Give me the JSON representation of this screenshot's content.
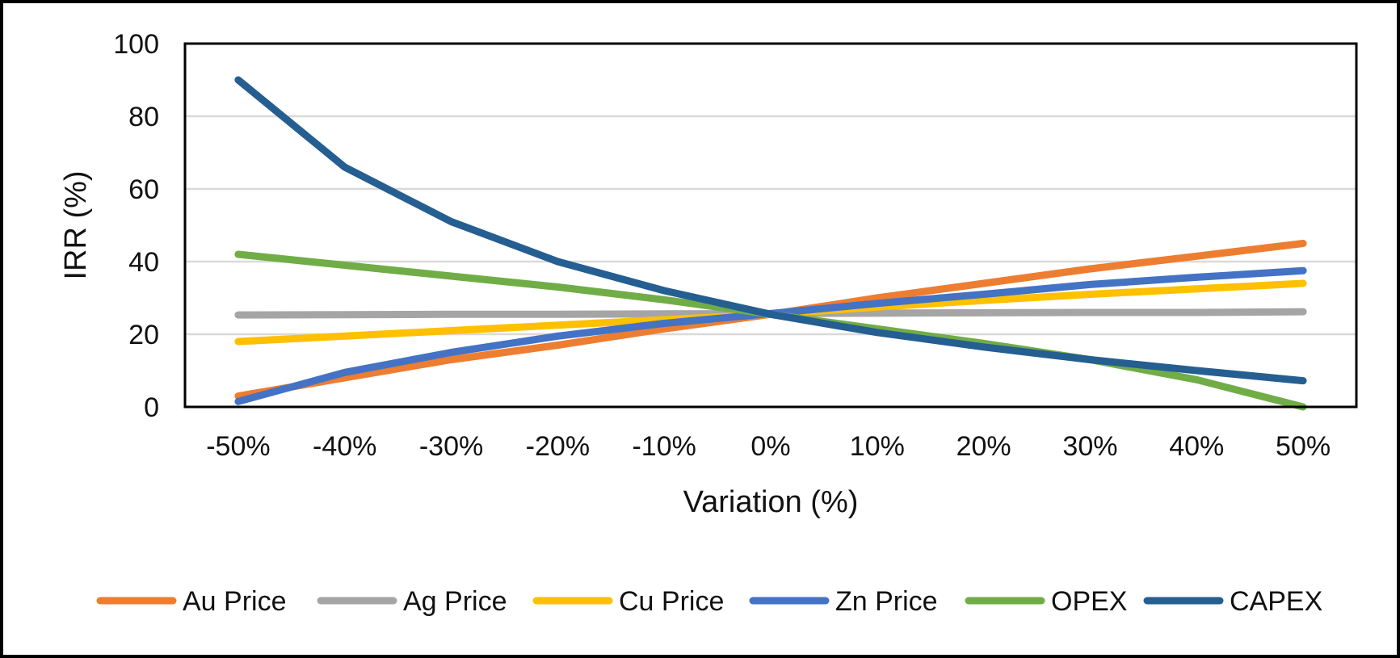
{
  "chart_data": {
    "type": "line",
    "x": [
      "-50%",
      "-40%",
      "-30%",
      "-20%",
      "-10%",
      "0%",
      "10%",
      "20%",
      "30%",
      "40%",
      "50%"
    ],
    "xlabel": "Variation (%)",
    "ylabel": "IRR (%)",
    "ylim": [
      0,
      100
    ],
    "yticks": [
      "0",
      "20",
      "40",
      "60",
      "80",
      "100"
    ],
    "grid": true,
    "legend": "bottom",
    "series": [
      {
        "name": "Au Price",
        "color": "#ED7D31",
        "values": [
          3,
          8,
          13,
          17,
          21.5,
          25.5,
          30,
          34,
          38,
          41.5,
          45
        ]
      },
      {
        "name": "Ag Price",
        "color": "#A5A5A5",
        "values": [
          25.3,
          25.4,
          25.5,
          25.5,
          25.6,
          25.7,
          25.8,
          25.9,
          26,
          26,
          26.2
        ]
      },
      {
        "name": "Cu Price",
        "color": "#FFC000",
        "values": [
          18,
          19.5,
          21,
          22.5,
          24,
          25.5,
          27.5,
          29.3,
          31,
          32.5,
          34
        ]
      },
      {
        "name": "Zn Price",
        "color": "#4472C4",
        "values": [
          1.5,
          9.5,
          15,
          19.5,
          23,
          25.7,
          28.5,
          31,
          33.7,
          35.7,
          37.5
        ]
      },
      {
        "name": "OPEX",
        "color": "#70AD47",
        "values": [
          42,
          39,
          36,
          33,
          29.5,
          25.5,
          21.5,
          17.5,
          13,
          7.5,
          0
        ]
      },
      {
        "name": "CAPEX",
        "color": "#255E91",
        "values": [
          90,
          66,
          51,
          40,
          32,
          25.5,
          20.5,
          16.5,
          13,
          10,
          7.2
        ]
      }
    ]
  }
}
